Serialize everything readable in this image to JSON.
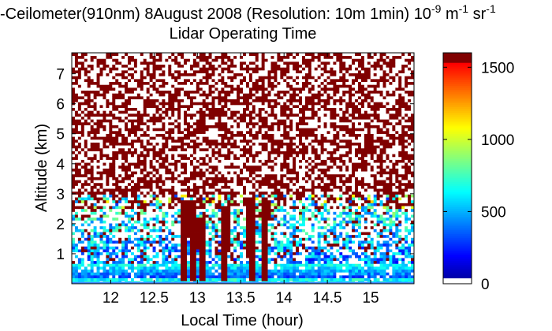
{
  "chart_data": {
    "type": "heatmap",
    "title": {
      "main": "-Ceilometer(910nm) 8August 2008 (Resolution: 10m 1min) 10",
      "exp1": "-9",
      "mid": " m",
      "exp2": "-1",
      "tail": " sr",
      "exp3": "-1"
    },
    "subtitle": "Lidar Operating Time",
    "xlabel": "Local Time (hour)",
    "ylabel": "Altitude (km)",
    "xlim": [
      11.55,
      15.5
    ],
    "ylim": [
      0,
      7.7
    ],
    "xticks": [
      "12",
      "12.5",
      "13",
      "13.5",
      "14",
      "14.5",
      "15"
    ],
    "yticks": [
      "1",
      "2",
      "3",
      "4",
      "5",
      "6",
      "7"
    ],
    "colorbar": {
      "range": [
        0,
        1600
      ],
      "ticks": [
        "0",
        "500",
        "1000",
        "1500"
      ],
      "colormap": "jet"
    },
    "colors": {
      "saturated": "#800000",
      "low": "#0000a0",
      "background": "#ffffff"
    },
    "features": {
      "surface_layer_top_km": 0.7,
      "scattered_aerosol_top_km": 2.9,
      "noisy_region_above_km": 3.0,
      "saturated_plumes": [
        {
          "x": 12.85,
          "top_km": 2.7,
          "bottom_km": 0.05
        },
        {
          "x": 12.95,
          "top_km": 2.8,
          "bottom_km": 0.05
        },
        {
          "x": 13.05,
          "top_km": 2.2,
          "bottom_km": 0.05
        },
        {
          "x": 13.32,
          "top_km": 2.6,
          "bottom_km": 0.05
        },
        {
          "x": 13.62,
          "top_km": 2.9,
          "bottom_km": 0.05
        },
        {
          "x": 13.78,
          "top_km": 2.8,
          "bottom_km": 0.05
        }
      ]
    }
  }
}
